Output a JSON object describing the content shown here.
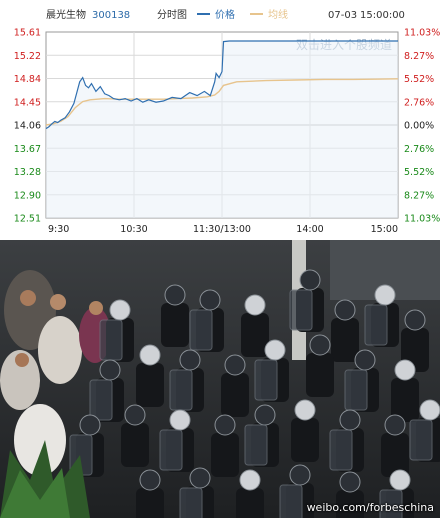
{
  "header": {
    "stock_name": "晨光生物",
    "stock_code": "300138",
    "chart_mode": "分时图",
    "legend_price": "价格",
    "legend_avg": "均线",
    "date": "07-03",
    "time": "15:00:00"
  },
  "watermark": "双击进入个股频道",
  "photo": {
    "credit": "weibo.com/forbeschina",
    "colors": {
      "background": "#2a2c2e",
      "uniform": "#15171a",
      "shield": "#3a4048"
    }
  },
  "chart_data": {
    "type": "line",
    "title": "",
    "x_ticks": [
      "9:30",
      "10:30",
      "11:30/13:00",
      "14:00",
      "15:00"
    ],
    "y_ticks_left": [
      "15.61",
      "15.22",
      "14.84",
      "14.45",
      "14.06",
      "13.67",
      "13.28",
      "12.90",
      "12.51"
    ],
    "y_ticks_right": [
      "11.03%",
      "8.27%",
      "5.52%",
      "2.76%",
      "0.00%",
      "2.76%",
      "5.52%",
      "8.27%",
      "11.03%"
    ],
    "ylim": [
      12.51,
      15.61
    ],
    "prev_close": 14.06,
    "session_minutes": 240,
    "colors": {
      "price": "#2f6fb0",
      "avg": "#e7c48d",
      "up": "#d02020",
      "down": "#1a8a1a",
      "grid": "#d9d9d9"
    },
    "series": [
      {
        "name": "价格",
        "x": [
          0,
          2,
          4,
          6,
          8,
          10,
          13,
          16,
          19,
          21,
          23,
          25,
          27,
          29,
          31,
          34,
          37,
          40,
          43,
          46,
          50,
          54,
          58,
          62,
          66,
          70,
          75,
          80,
          86,
          92,
          98,
          103,
          108,
          112,
          115,
          116,
          118,
          120,
          121,
          125,
          135,
          150,
          170,
          190,
          210,
          225,
          240
        ],
        "y": [
          14.0,
          14.03,
          14.08,
          14.12,
          14.1,
          14.14,
          14.18,
          14.28,
          14.42,
          14.6,
          14.78,
          14.85,
          14.72,
          14.68,
          14.75,
          14.62,
          14.7,
          14.58,
          14.55,
          14.5,
          14.48,
          14.5,
          14.46,
          14.5,
          14.44,
          14.48,
          14.44,
          14.46,
          14.52,
          14.5,
          14.6,
          14.55,
          14.62,
          14.55,
          14.78,
          14.92,
          14.85,
          14.95,
          15.45,
          15.46,
          15.46,
          15.46,
          15.46,
          15.46,
          15.46,
          15.46,
          15.46
        ]
      },
      {
        "name": "均线",
        "x": [
          0,
          5,
          10,
          15,
          20,
          25,
          30,
          40,
          50,
          60,
          70,
          80,
          90,
          100,
          110,
          115,
          118,
          121,
          130,
          150,
          170,
          190,
          210,
          240
        ],
        "y": [
          14.06,
          14.08,
          14.12,
          14.2,
          14.35,
          14.45,
          14.48,
          14.5,
          14.49,
          14.49,
          14.49,
          14.49,
          14.5,
          14.51,
          14.53,
          14.56,
          14.62,
          14.72,
          14.78,
          14.8,
          14.81,
          14.82,
          14.82,
          14.83
        ]
      }
    ]
  }
}
